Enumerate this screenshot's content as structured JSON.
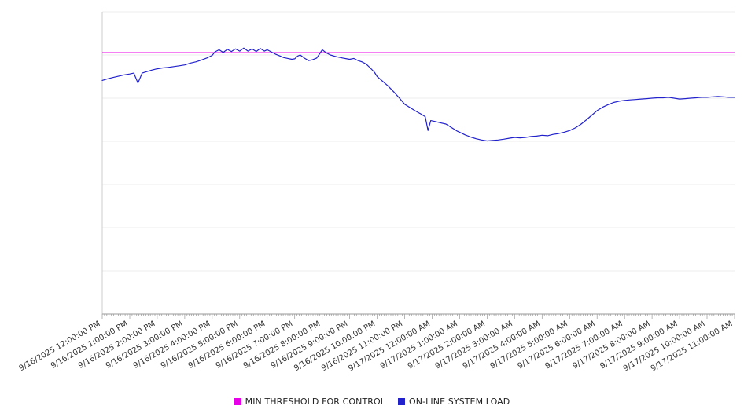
{
  "chart_data": {
    "type": "line",
    "title": "",
    "xlabel": "",
    "ylabel": "",
    "y_axis": {
      "range": [
        0,
        7
      ],
      "gridline_step": 1,
      "tick_labels_visible": false
    },
    "grid": "horizontal",
    "legend_position": "bottom",
    "x_hours_span": 23,
    "categories": [
      "9/16/2025 12:00:00 PM",
      "9/16/2025 1:00:00 PM",
      "9/16/2025 2:00:00 PM",
      "9/16/2025 3:00:00 PM",
      "9/16/2025 4:00:00 PM",
      "9/16/2025 5:00:00 PM",
      "9/16/2025 6:00:00 PM",
      "9/16/2025 7:00:00 PM",
      "9/16/2025 8:00:00 PM",
      "9/16/2025 9:00:00 PM",
      "9/16/2025 10:00:00 PM",
      "9/16/2025 11:00:00 PM",
      "9/17/2025 12:00:00 AM",
      "9/17/2025 1:00:00 AM",
      "9/17/2025 2:00:00 AM",
      "9/17/2025 3:00:00 AM",
      "9/17/2025 4:00:00 AM",
      "9/17/2025 5:00:00 AM",
      "9/17/2025 6:00:00 AM",
      "9/17/2025 7:00:00 AM",
      "9/17/2025 8:00:00 AM",
      "9/17/2025 9:00:00 AM",
      "9/17/2025 10:00:00 AM",
      "9/17/2025 11:00:00 AM"
    ],
    "series": [
      {
        "name": "MIN THRESHOLD FOR CONTROL",
        "color": "#e800e8",
        "style": "horizontal-line",
        "value": 6.05
      },
      {
        "name": "ON-LINE SYSTEM LOAD",
        "color": "#2222cc",
        "style": "line",
        "points": [
          [
            0,
            5.41
          ],
          [
            0.2,
            5.45
          ],
          [
            0.4,
            5.48
          ],
          [
            0.6,
            5.51
          ],
          [
            0.8,
            5.54
          ],
          [
            1,
            5.56
          ],
          [
            1.15,
            5.58
          ],
          [
            1.3,
            5.35
          ],
          [
            1.45,
            5.58
          ],
          [
            1.6,
            5.61
          ],
          [
            1.8,
            5.65
          ],
          [
            2,
            5.68
          ],
          [
            2.2,
            5.7
          ],
          [
            2.4,
            5.71
          ],
          [
            2.6,
            5.73
          ],
          [
            2.8,
            5.75
          ],
          [
            3,
            5.77
          ],
          [
            3.2,
            5.81
          ],
          [
            3.4,
            5.84
          ],
          [
            3.6,
            5.88
          ],
          [
            3.8,
            5.93
          ],
          [
            4,
            5.99
          ],
          [
            4.1,
            6.07
          ],
          [
            4.25,
            6.12
          ],
          [
            4.4,
            6.06
          ],
          [
            4.55,
            6.13
          ],
          [
            4.7,
            6.08
          ],
          [
            4.85,
            6.14
          ],
          [
            5,
            6.09
          ],
          [
            5.15,
            6.16
          ],
          [
            5.3,
            6.09
          ],
          [
            5.45,
            6.14
          ],
          [
            5.6,
            6.08
          ],
          [
            5.75,
            6.15
          ],
          [
            5.9,
            6.09
          ],
          [
            6,
            6.12
          ],
          [
            6.15,
            6.07
          ],
          [
            6.3,
            6.02
          ],
          [
            6.45,
            5.98
          ],
          [
            6.6,
            5.94
          ],
          [
            6.75,
            5.92
          ],
          [
            6.9,
            5.9
          ],
          [
            7,
            5.91
          ],
          [
            7.1,
            5.97
          ],
          [
            7.2,
            6.0
          ],
          [
            7.35,
            5.93
          ],
          [
            7.5,
            5.87
          ],
          [
            7.65,
            5.89
          ],
          [
            7.8,
            5.93
          ],
          [
            7.9,
            6.02
          ],
          [
            8,
            6.12
          ],
          [
            8.15,
            6.05
          ],
          [
            8.3,
            6.0
          ],
          [
            8.45,
            5.97
          ],
          [
            8.6,
            5.95
          ],
          [
            8.75,
            5.93
          ],
          [
            8.9,
            5.91
          ],
          [
            9,
            5.9
          ],
          [
            9.15,
            5.92
          ],
          [
            9.3,
            5.87
          ],
          [
            9.45,
            5.84
          ],
          [
            9.6,
            5.79
          ],
          [
            9.75,
            5.7
          ],
          [
            9.9,
            5.6
          ],
          [
            10,
            5.5
          ],
          [
            10.2,
            5.39
          ],
          [
            10.4,
            5.28
          ],
          [
            10.6,
            5.15
          ],
          [
            10.8,
            5.01
          ],
          [
            11,
            4.86
          ],
          [
            11.2,
            4.78
          ],
          [
            11.4,
            4.7
          ],
          [
            11.6,
            4.63
          ],
          [
            11.75,
            4.57
          ],
          [
            11.85,
            4.25
          ],
          [
            11.95,
            4.48
          ],
          [
            12.1,
            4.46
          ],
          [
            12.3,
            4.43
          ],
          [
            12.5,
            4.4
          ],
          [
            12.7,
            4.32
          ],
          [
            12.9,
            4.24
          ],
          [
            13,
            4.21
          ],
          [
            13.2,
            4.15
          ],
          [
            13.4,
            4.1
          ],
          [
            13.6,
            4.06
          ],
          [
            13.8,
            4.03
          ],
          [
            14,
            4.01
          ],
          [
            14.2,
            4.02
          ],
          [
            14.4,
            4.03
          ],
          [
            14.6,
            4.05
          ],
          [
            14.8,
            4.07
          ],
          [
            15,
            4.09
          ],
          [
            15.2,
            4.08
          ],
          [
            15.4,
            4.09
          ],
          [
            15.6,
            4.11
          ],
          [
            15.8,
            4.12
          ],
          [
            16,
            4.14
          ],
          [
            16.2,
            4.13
          ],
          [
            16.4,
            4.16
          ],
          [
            16.6,
            4.18
          ],
          [
            16.8,
            4.21
          ],
          [
            17,
            4.25
          ],
          [
            17.2,
            4.31
          ],
          [
            17.4,
            4.39
          ],
          [
            17.6,
            4.49
          ],
          [
            17.8,
            4.6
          ],
          [
            18,
            4.71
          ],
          [
            18.2,
            4.79
          ],
          [
            18.4,
            4.85
          ],
          [
            18.6,
            4.9
          ],
          [
            18.8,
            4.93
          ],
          [
            19,
            4.95
          ],
          [
            19.2,
            4.96
          ],
          [
            19.4,
            4.97
          ],
          [
            19.6,
            4.98
          ],
          [
            19.8,
            4.99
          ],
          [
            20,
            5.0
          ],
          [
            20.2,
            5.01
          ],
          [
            20.4,
            5.01
          ],
          [
            20.6,
            5.02
          ],
          [
            20.8,
            5.0
          ],
          [
            21,
            4.98
          ],
          [
            21.2,
            4.99
          ],
          [
            21.4,
            5.0
          ],
          [
            21.6,
            5.01
          ],
          [
            21.8,
            5.02
          ],
          [
            22,
            5.02
          ],
          [
            22.2,
            5.03
          ],
          [
            22.4,
            5.04
          ],
          [
            22.6,
            5.03
          ],
          [
            22.8,
            5.02
          ],
          [
            23,
            5.02
          ]
        ]
      }
    ]
  }
}
